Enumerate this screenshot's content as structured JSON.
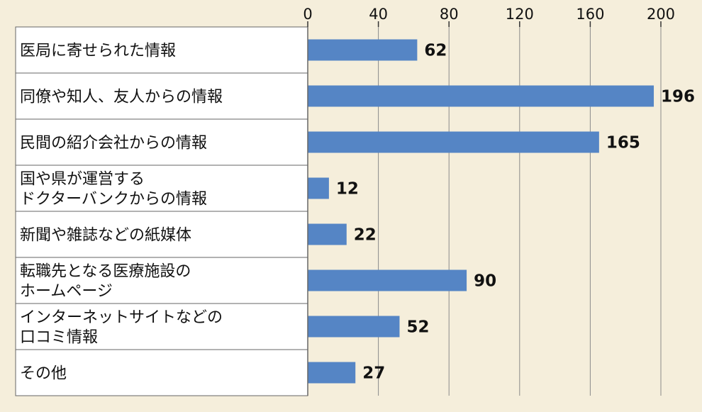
{
  "chart_data": {
    "type": "bar",
    "orientation": "horizontal",
    "categories": [
      [
        "医局に寄せられた情報"
      ],
      [
        "同僚や知人、友人からの情報"
      ],
      [
        "民間の紹介会社からの情報"
      ],
      [
        "国や県が運営する",
        "ドクターバンクからの情報"
      ],
      [
        "新聞や雑誌などの紙媒体"
      ],
      [
        "転職先となる医療施設の",
        "ホームページ"
      ],
      [
        "インターネットサイトなどの",
        "口コミ情報"
      ],
      [
        "その他"
      ]
    ],
    "values": [
      62,
      196,
      165,
      12,
      22,
      90,
      52,
      27
    ],
    "xlim": [
      0,
      200
    ],
    "ticks": [
      0,
      40,
      80,
      120,
      160,
      200
    ],
    "tick_labels": [
      "0",
      "40",
      "80",
      "120",
      "160",
      "200"
    ],
    "axis_position": "top",
    "grid": true,
    "bar_color": "#5585c5",
    "grid_color": "#8a8a8a",
    "label_panel_color": "#ffffff",
    "background_color": "#f5eedb"
  }
}
